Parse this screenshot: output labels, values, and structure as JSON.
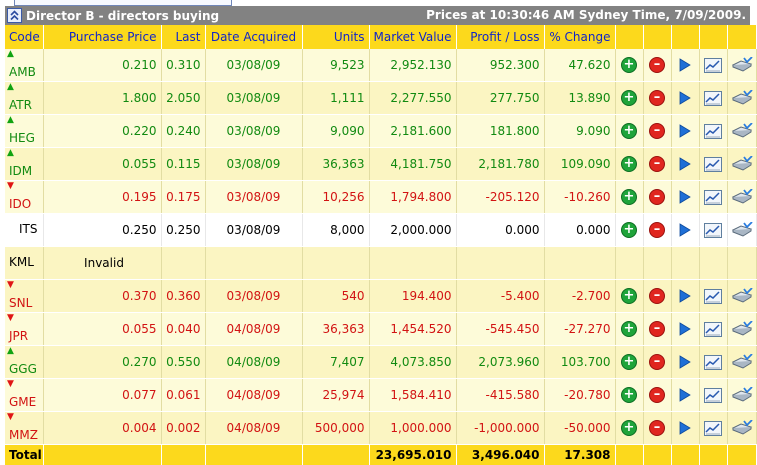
{
  "header": {
    "title": "Director B - directors buying",
    "prices_at": "Prices at 10:30:46 AM Sydney Time, 7/09/2009."
  },
  "columns": [
    "Code",
    "Purchase Price",
    "Last",
    "Date Acquired",
    "Units",
    "Market Value",
    "Profit / Loss",
    "% Change"
  ],
  "rows": [
    {
      "code": "AMB",
      "trend": "up",
      "purchase": "0.210",
      "last": "0.310",
      "date": "03/08/09",
      "units": "9,523",
      "market": "2,952.130",
      "pl": "952.300",
      "change": "47.620"
    },
    {
      "code": "ATR",
      "trend": "up",
      "purchase": "1.800",
      "last": "2.050",
      "date": "03/08/09",
      "units": "1,111",
      "market": "2,277.550",
      "pl": "277.750",
      "change": "13.890"
    },
    {
      "code": "HEG",
      "trend": "up",
      "purchase": "0.220",
      "last": "0.240",
      "date": "03/08/09",
      "units": "9,090",
      "market": "2,181.600",
      "pl": "181.800",
      "change": "9.090"
    },
    {
      "code": "IDM",
      "trend": "up",
      "purchase": "0.055",
      "last": "0.115",
      "date": "03/08/09",
      "units": "36,363",
      "market": "4,181.750",
      "pl": "2,181.780",
      "change": "109.090"
    },
    {
      "code": "IDO",
      "trend": "down",
      "purchase": "0.195",
      "last": "0.175",
      "date": "03/08/09",
      "units": "10,256",
      "market": "1,794.800",
      "pl": "-205.120",
      "change": "-10.260"
    },
    {
      "code": "ITS",
      "trend": "none",
      "purchase": "0.250",
      "last": "0.250",
      "date": "03/08/09",
      "units": "8,000",
      "market": "2,000.000",
      "pl": "0.000",
      "change": "0.000"
    },
    {
      "code": "KML",
      "trend": "invalid",
      "invalid_text": "Invalid"
    },
    {
      "code": "SNL",
      "trend": "down",
      "purchase": "0.370",
      "last": "0.360",
      "date": "03/08/09",
      "units": "540",
      "market": "194.400",
      "pl": "-5.400",
      "change": "-2.700"
    },
    {
      "code": "JPR",
      "trend": "down",
      "purchase": "0.055",
      "last": "0.040",
      "date": "04/08/09",
      "units": "36,363",
      "market": "1,454.520",
      "pl": "-545.450",
      "change": "-27.270"
    },
    {
      "code": "GGG",
      "trend": "up",
      "purchase": "0.270",
      "last": "0.550",
      "date": "04/08/09",
      "units": "7,407",
      "market": "4,073.850",
      "pl": "2,073.960",
      "change": "103.700"
    },
    {
      "code": "GME",
      "trend": "down",
      "purchase": "0.077",
      "last": "0.061",
      "date": "04/08/09",
      "units": "25,974",
      "market": "1,584.410",
      "pl": "-415.580",
      "change": "-20.780"
    },
    {
      "code": "MMZ",
      "trend": "down",
      "purchase": "0.004",
      "last": "0.002",
      "date": "04/08/09",
      "units": "500,000",
      "market": "1,000.000",
      "pl": "-1,000.000",
      "change": "-50.000"
    }
  ],
  "totals": {
    "label": "Total",
    "market": "23,695.010",
    "pl": "3,496.040",
    "change": "17.308"
  },
  "row_actions": [
    "add-icon",
    "remove-icon",
    "play-icon",
    "chart-icon",
    "trade-icon"
  ],
  "colors": {
    "header_bg": "#fcd91c",
    "header_text": "#1226c8",
    "gain": "#118a11",
    "loss": "#d21313",
    "title_bg": "#828282"
  }
}
